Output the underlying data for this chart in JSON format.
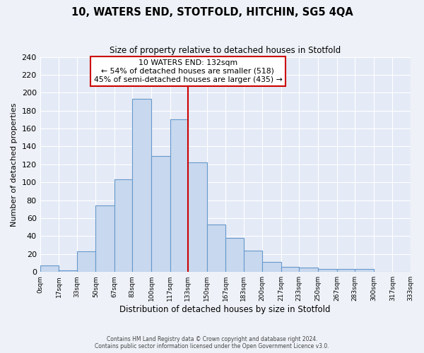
{
  "title": "10, WATERS END, STOTFOLD, HITCHIN, SG5 4QA",
  "subtitle": "Size of property relative to detached houses in Stotfold",
  "xlabel": "Distribution of detached houses by size in Stotfold",
  "ylabel": "Number of detached properties",
  "bin_edges": [
    0,
    17,
    33,
    50,
    67,
    83,
    100,
    117,
    133,
    150,
    167,
    183,
    200,
    217,
    233,
    250,
    267,
    283,
    300,
    317,
    333
  ],
  "bin_labels": [
    "0sqm",
    "17sqm",
    "33sqm",
    "50sqm",
    "67sqm",
    "83sqm",
    "100sqm",
    "117sqm",
    "133sqm",
    "150sqm",
    "167sqm",
    "183sqm",
    "200sqm",
    "217sqm",
    "233sqm",
    "250sqm",
    "267sqm",
    "283sqm",
    "300sqm",
    "317sqm",
    "333sqm"
  ],
  "counts": [
    7,
    2,
    23,
    74,
    103,
    193,
    129,
    170,
    122,
    53,
    38,
    24,
    11,
    6,
    5,
    3,
    3,
    3,
    0,
    0
  ],
  "bar_color": "#c8d8ee",
  "bar_edge_color": "#6699cc",
  "vline_x": 133,
  "vline_color": "#cc0000",
  "annotation_title": "10 WATERS END: 132sqm",
  "annotation_line1": "← 54% of detached houses are smaller (518)",
  "annotation_line2": "45% of semi-detached houses are larger (435) →",
  "annotation_box_color": "#ffffff",
  "annotation_box_edge_color": "#cc0000",
  "ylim": [
    0,
    240
  ],
  "yticks": [
    0,
    20,
    40,
    60,
    80,
    100,
    120,
    140,
    160,
    180,
    200,
    220,
    240
  ],
  "footer_line1": "Contains HM Land Registry data © Crown copyright and database right 2024.",
  "footer_line2": "Contains public sector information licensed under the Open Government Licence v3.0.",
  "bg_color": "#eef2f8",
  "plot_bg_color": "#e4eaf6",
  "grid_color": "#ffffff"
}
